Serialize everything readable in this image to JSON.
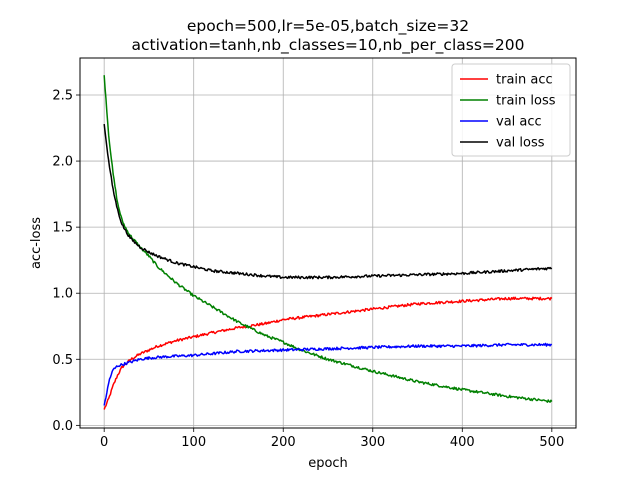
{
  "chart_data": {
    "type": "line",
    "title": [
      "epoch=500,lr=5e-05,batch_size=32",
      "activation=tanh,nb_classes=10,nb_per_class=200"
    ],
    "xlabel": "epoch",
    "ylabel": "acc-loss",
    "xlim": [
      -27,
      527
    ],
    "ylim": [
      -0.02,
      2.78
    ],
    "xticks": [
      0,
      100,
      200,
      300,
      400,
      500
    ],
    "yticks": [
      0.0,
      0.5,
      1.0,
      1.5,
      2.0,
      2.5
    ],
    "xtick_labels": [
      "0",
      "100",
      "200",
      "300",
      "400",
      "500"
    ],
    "ytick_labels": [
      "0.0",
      "0.5",
      "1.0",
      "1.5",
      "2.0",
      "2.5"
    ],
    "grid": true,
    "legend_position": "top-right",
    "series": [
      {
        "name": "train acc",
        "color": "#ff0000",
        "x": [
          0,
          5,
          10,
          15,
          20,
          30,
          40,
          50,
          60,
          80,
          100,
          120,
          150,
          180,
          200,
          250,
          300,
          350,
          400,
          450,
          500
        ],
        "y": [
          0.12,
          0.2,
          0.3,
          0.38,
          0.44,
          0.5,
          0.54,
          0.57,
          0.6,
          0.64,
          0.67,
          0.7,
          0.74,
          0.77,
          0.8,
          0.84,
          0.88,
          0.92,
          0.94,
          0.96,
          0.96
        ]
      },
      {
        "name": "train loss",
        "color": "#008000",
        "x": [
          0,
          5,
          10,
          15,
          20,
          25,
          30,
          40,
          50,
          60,
          80,
          100,
          120,
          150,
          180,
          200,
          220,
          250,
          300,
          350,
          400,
          450,
          500
        ],
        "y": [
          2.65,
          2.2,
          1.9,
          1.68,
          1.55,
          1.48,
          1.43,
          1.35,
          1.28,
          1.2,
          1.08,
          0.98,
          0.9,
          0.78,
          0.68,
          0.63,
          0.57,
          0.5,
          0.41,
          0.33,
          0.27,
          0.22,
          0.18
        ]
      },
      {
        "name": "val acc",
        "color": "#0000ff",
        "x": [
          0,
          3,
          6,
          10,
          15,
          20,
          30,
          40,
          50,
          70,
          100,
          150,
          200,
          250,
          300,
          350,
          400,
          450,
          500
        ],
        "y": [
          0.15,
          0.25,
          0.35,
          0.42,
          0.45,
          0.46,
          0.48,
          0.5,
          0.51,
          0.52,
          0.53,
          0.56,
          0.57,
          0.58,
          0.59,
          0.6,
          0.6,
          0.61,
          0.61
        ]
      },
      {
        "name": "val loss",
        "color": "#000000",
        "x": [
          0,
          5,
          10,
          15,
          20,
          25,
          30,
          40,
          50,
          60,
          80,
          100,
          120,
          150,
          180,
          200,
          250,
          300,
          350,
          400,
          450,
          500
        ],
        "y": [
          2.28,
          2.0,
          1.78,
          1.63,
          1.52,
          1.46,
          1.41,
          1.35,
          1.31,
          1.28,
          1.23,
          1.2,
          1.17,
          1.15,
          1.13,
          1.12,
          1.12,
          1.13,
          1.14,
          1.15,
          1.17,
          1.19
        ]
      }
    ]
  }
}
